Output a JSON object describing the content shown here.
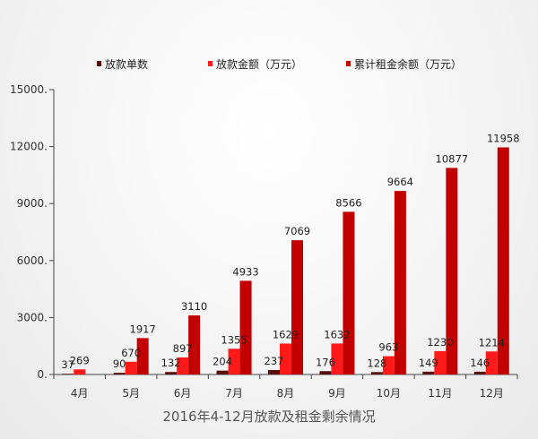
{
  "chart_data": {
    "type": "bar",
    "title": "2016年4-12月放款及租金剩余情况",
    "categories": [
      "4月",
      "5月",
      "6月",
      "7月",
      "8月",
      "9月",
      "10月",
      "11月",
      "12月"
    ],
    "series": [
      {
        "name": "放款单数",
        "color": "#5a0f0f",
        "values": [
          37,
          90,
          132,
          204,
          237,
          176,
          128,
          149,
          146
        ]
      },
      {
        "name": "放款金额（万元）",
        "color": "#ff1a1a",
        "values": [
          269,
          670,
          897,
          1355,
          1629,
          1632,
          963,
          1230,
          1214
        ]
      },
      {
        "name": "累计租金余额（万元）",
        "color": "#c20000",
        "values": [
          null,
          1917,
          3110,
          4933,
          7069,
          8566,
          9664,
          10877,
          11958
        ]
      }
    ],
    "data_labels": [
      [
        "37",
        "90",
        "132",
        "204",
        "237",
        "176",
        "128",
        "149",
        "146"
      ],
      [
        "269",
        "670",
        "897",
        "1355",
        "1629",
        "1632",
        "963",
        "1230",
        "1214"
      ],
      [
        "",
        "1917",
        "3110",
        "4933",
        "7069",
        "8566",
        "9664",
        "10877",
        "11958"
      ]
    ],
    "ylim": [
      0,
      15000
    ],
    "yticks": [
      0,
      3000,
      6000,
      9000,
      12000,
      15000
    ],
    "ytick_labels": [
      "0.",
      "3000.",
      "6000.",
      "9000.",
      "12000.",
      "15000."
    ],
    "grid": false,
    "legend_position": "top"
  }
}
